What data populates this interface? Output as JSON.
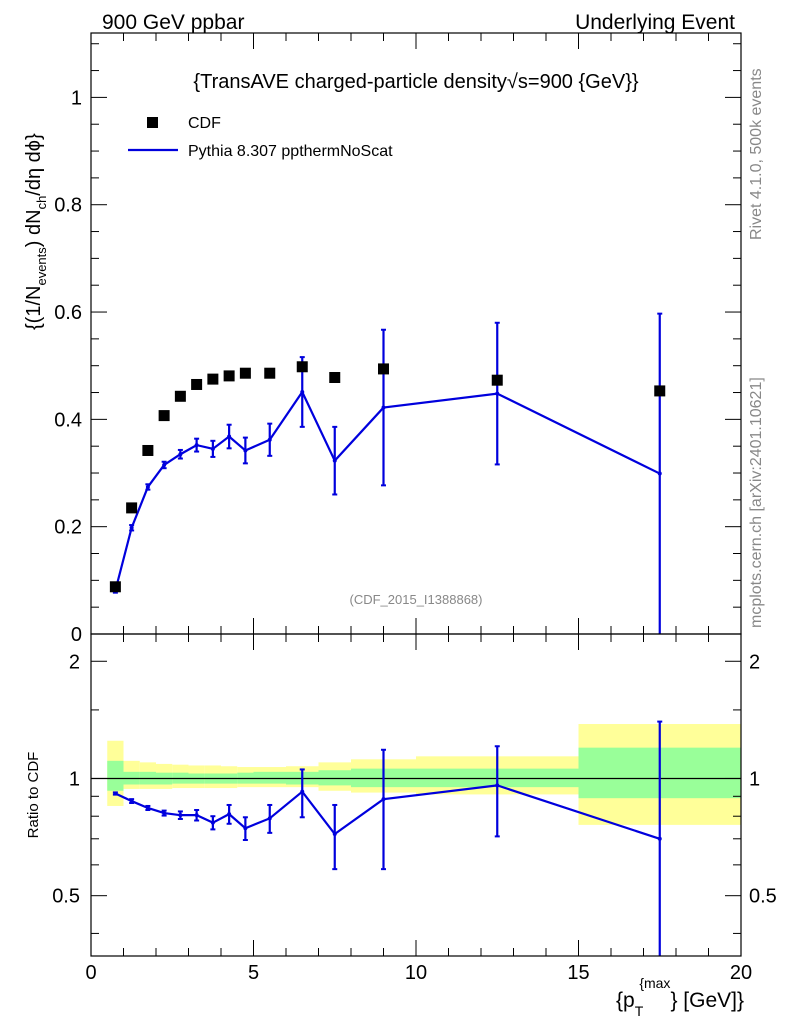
{
  "header": {
    "left": "900 GeV ppbar",
    "right": "Underlying Event"
  },
  "side_labels": {
    "rivet": "Rivet 4.1.0,  500k events",
    "mcplots": "mcplots.cern.ch [arXiv:2401.10621]"
  },
  "colors": {
    "data": "#000000",
    "mc": "#0000dd",
    "band_outer": "#ffff99",
    "band_inner": "#99ff99"
  },
  "chart_data": [
    {
      "type": "scatter",
      "panel": "main",
      "title": "{TransAVE charged-particle density√s=900 {GeV}}",
      "ylabel_parts": {
        "a": "{(1/N",
        "b": "events",
        "c": ") dN",
        "d": "ch",
        "e": "/dη  dϕ}"
      },
      "xlim": [
        0,
        20
      ],
      "ylim": [
        0,
        1.12
      ],
      "yticks": [
        0,
        0.2,
        0.4,
        0.6,
        0.8,
        1
      ],
      "ytick_labels": [
        "0",
        "0.2",
        "0.4",
        "0.6",
        "0.8",
        "1"
      ],
      "watermark": "(CDF_2015_I1388868)",
      "legend": [
        {
          "label": "CDF",
          "marker": "square"
        },
        {
          "label": "Pythia 8.307 ppthermNoScat",
          "marker": "line"
        }
      ],
      "series": [
        {
          "name": "CDF",
          "x": [
            0.75,
            1.25,
            1.75,
            2.25,
            2.75,
            3.25,
            3.75,
            4.25,
            4.75,
            5.5,
            6.5,
            7.5,
            9.0,
            12.5,
            17.5
          ],
          "y": [
            0.088,
            0.235,
            0.342,
            0.407,
            0.443,
            0.465,
            0.475,
            0.481,
            0.486,
            0.486,
            0.498,
            0.478,
            0.494,
            0.473,
            0.453
          ]
        },
        {
          "name": "Pythia 8.307 ppthermNoScat",
          "x": [
            0.75,
            1.25,
            1.75,
            2.25,
            2.75,
            3.25,
            3.75,
            4.25,
            4.75,
            5.5,
            6.5,
            7.5,
            9.0,
            12.5,
            17.5
          ],
          "y": [
            0.081,
            0.198,
            0.274,
            0.315,
            0.335,
            0.352,
            0.345,
            0.368,
            0.342,
            0.362,
            0.451,
            0.323,
            0.422,
            0.448,
            0.299
          ],
          "err": [
            0.004,
            0.005,
            0.005,
            0.006,
            0.008,
            0.012,
            0.015,
            0.022,
            0.024,
            0.03,
            0.065,
            0.063,
            0.145,
            0.132,
            0.3
          ],
          "err_hi_override": {
            "17.5": 0.298
          }
        }
      ]
    },
    {
      "type": "line",
      "panel": "ratio",
      "ylabel": "Ratio to CDF",
      "xlabel_parts": {
        "a": "{p",
        "sub": "T",
        "sup": "{max",
        "b": "} [GeV]}"
      },
      "xlim": [
        0,
        20
      ],
      "ylim": [
        0.35,
        2.35
      ],
      "log_y": true,
      "xticks": [
        0,
        5,
        10,
        15,
        20
      ],
      "xtick_labels": [
        "0",
        "5",
        "10",
        "15",
        "20"
      ],
      "yticks": [
        0.5,
        1,
        2
      ],
      "ytick_labels": [
        "0.5",
        "1",
        "2"
      ],
      "bands": {
        "edges": [
          0.5,
          1.0,
          1.5,
          2.0,
          2.5,
          3.0,
          3.5,
          4.0,
          4.5,
          5.0,
          6.0,
          7.0,
          8.0,
          10.0,
          15.0,
          20.0
        ],
        "outer_lo": [
          0.85,
          0.94,
          0.94,
          0.94,
          0.945,
          0.945,
          0.945,
          0.945,
          0.95,
          0.95,
          0.95,
          0.93,
          0.92,
          0.91,
          0.76
        ],
        "outer_hi": [
          1.25,
          1.11,
          1.1,
          1.09,
          1.085,
          1.08,
          1.08,
          1.075,
          1.07,
          1.07,
          1.075,
          1.1,
          1.12,
          1.14,
          1.38
        ],
        "inner_lo": [
          0.93,
          0.965,
          0.965,
          0.965,
          0.97,
          0.97,
          0.97,
          0.97,
          0.97,
          0.97,
          0.965,
          0.96,
          0.95,
          0.95,
          0.89
        ],
        "inner_hi": [
          1.11,
          1.04,
          1.04,
          1.035,
          1.035,
          1.03,
          1.03,
          1.03,
          1.035,
          1.04,
          1.04,
          1.05,
          1.06,
          1.06,
          1.2
        ]
      },
      "series": [
        {
          "name": "Pythia 8.307 ppthermNoScat / CDF",
          "x": [
            0.75,
            1.25,
            1.75,
            2.25,
            2.75,
            3.25,
            3.75,
            4.25,
            4.75,
            5.5,
            6.5,
            7.5,
            9.0,
            12.5,
            17.5
          ],
          "y": [
            0.915,
            0.875,
            0.84,
            0.815,
            0.805,
            0.805,
            0.77,
            0.81,
            0.745,
            0.79,
            0.925,
            0.72,
            0.885,
            0.96,
            0.7
          ],
          "err": [
            0.006,
            0.01,
            0.01,
            0.012,
            0.018,
            0.025,
            0.03,
            0.045,
            0.05,
            0.065,
            0.13,
            0.135,
            0.3,
            0.25,
            0.7
          ]
        }
      ]
    }
  ]
}
